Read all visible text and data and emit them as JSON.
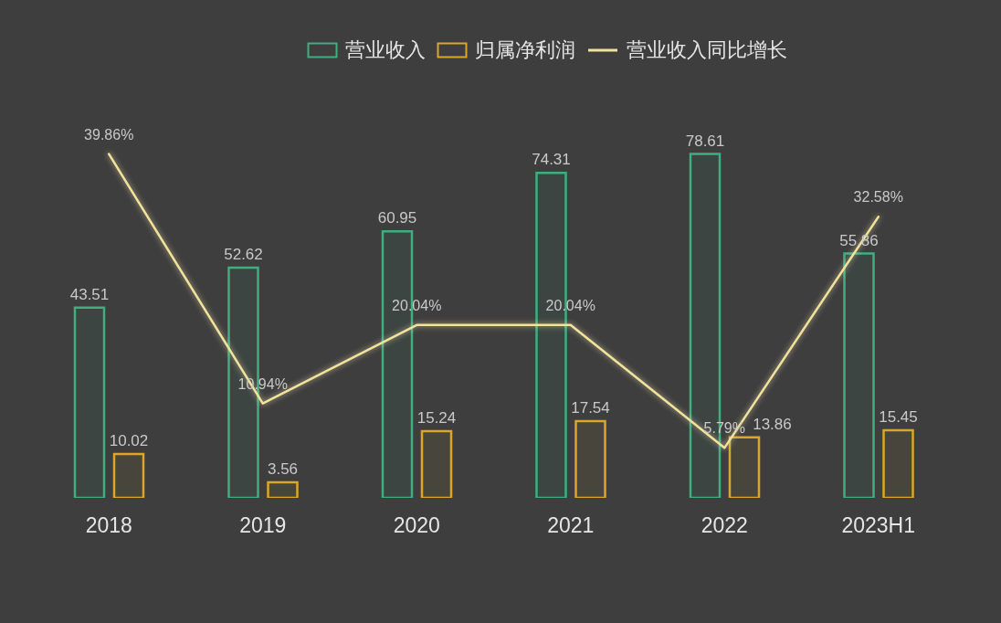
{
  "chart_data": {
    "type": "bar",
    "categories": [
      "2018",
      "2019",
      "2020",
      "2021",
      "2022",
      "2023H1"
    ],
    "series": [
      {
        "name": "营业收入",
        "color": "#3fae80",
        "values": [
          43.51,
          52.62,
          60.95,
          74.31,
          78.61,
          55.86
        ]
      },
      {
        "name": "归属净利润",
        "color": "#dba62a",
        "values": [
          10.02,
          3.56,
          15.24,
          17.54,
          13.86,
          15.45
        ]
      },
      {
        "name": "营业收入同比增长",
        "type": "line",
        "axis": "y2",
        "color": "#f2e29a",
        "values": [
          39.86,
          10.94,
          20.04,
          20.04,
          5.79,
          32.58
        ],
        "value_labels": [
          "39.86%",
          "10.94%",
          "20.04%",
          "20.04%",
          "5.79%",
          "32.58%"
        ]
      }
    ],
    "data_labels": true,
    "tick_labels": "x",
    "legend": "top",
    "line_style": "solid"
  }
}
